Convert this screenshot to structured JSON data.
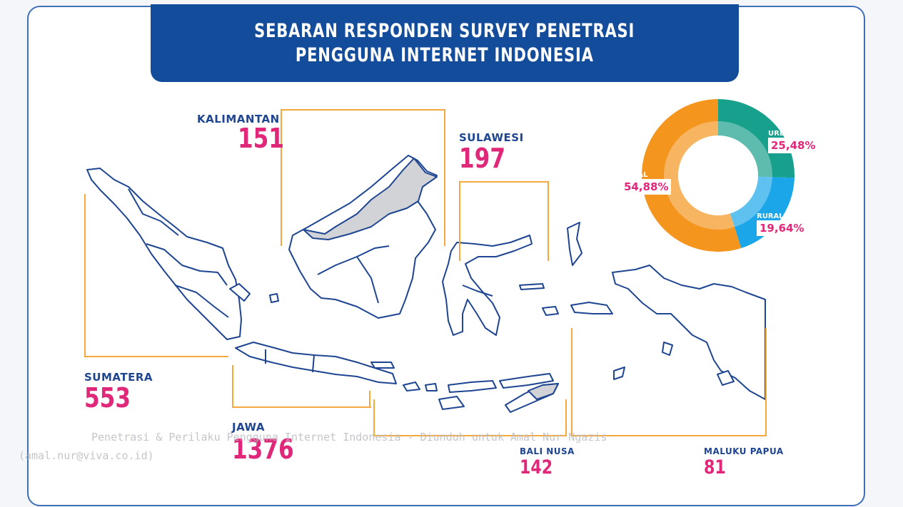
{
  "title": {
    "line1": "SEBARAN RESPONDEN SURVEY PENETRASI",
    "line2": "PENGGUNA INTERNET INDONESIA"
  },
  "regions": {
    "kalimantan": {
      "name": "KALIMANTAN",
      "value": "151"
    },
    "sulawesi": {
      "name": "SULAWESI",
      "value": "197"
    },
    "sumatera": {
      "name": "SUMATERA",
      "value": "553"
    },
    "jawa": {
      "name": "JAWA",
      "value": "1376"
    },
    "bali_nusa": {
      "name": "BALI NUSA",
      "value": "142"
    },
    "maluku_papua": {
      "name": "MALUKU PAPUA",
      "value": "81"
    }
  },
  "donut": {
    "urban": {
      "label": "URBAN",
      "pct": "25,48%",
      "value": 25.48,
      "color": "#17a08c"
    },
    "rural_urban": {
      "label": "RURAL - URBAN",
      "pct": "19,64%",
      "value": 19.64,
      "color": "#1aa6e8"
    },
    "rural": {
      "label": "RURAL",
      "pct": "54,88%",
      "value": 54.88,
      "color": "#f4961e"
    }
  },
  "watermark": {
    "line1": "Penetrasi & Perilaku Pengguna Internet Indonesia - Diunduh untuk Amal Nur Ngazis",
    "line2": "(amal.nur@viva.co.id)"
  },
  "colors": {
    "banner": "#144c9c",
    "accent_pink": "#e0287a",
    "bracket": "#f5a83e",
    "map_stroke": "#1e4591"
  }
}
